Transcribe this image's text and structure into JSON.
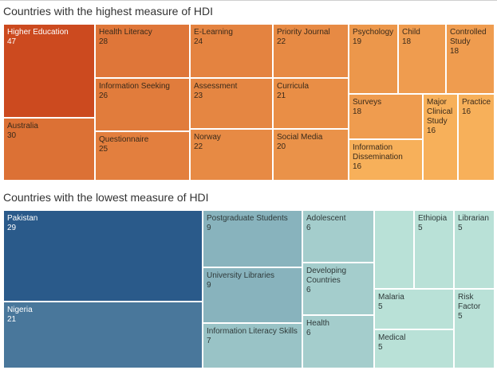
{
  "chart_data": [
    {
      "type": "treemap",
      "title": "Countries with the highest measure of HDI",
      "items": [
        {
          "label": "Higher Education",
          "value": 47
        },
        {
          "label": "Australia",
          "value": 30
        },
        {
          "label": "Health Literacy",
          "value": 28
        },
        {
          "label": "Information Seeking",
          "value": 26
        },
        {
          "label": "Questionnaire",
          "value": 25
        },
        {
          "label": "E-Learning",
          "value": 24
        },
        {
          "label": "Assessment",
          "value": 23
        },
        {
          "label": "Norway",
          "value": 22
        },
        {
          "label": "Priority Journal",
          "value": 22
        },
        {
          "label": "Curricula",
          "value": 21
        },
        {
          "label": "Social Media",
          "value": 20
        },
        {
          "label": "Psychology",
          "value": 19
        },
        {
          "label": "Child",
          "value": 18
        },
        {
          "label": "Controlled Study",
          "value": 18
        },
        {
          "label": "Surveys",
          "value": 18
        },
        {
          "label": "Major Clinical Study",
          "value": 16
        },
        {
          "label": "Practice",
          "value": 16
        },
        {
          "label": "Information Dissemination",
          "value": 16
        }
      ],
      "colors": {
        "low": "#f7b05a",
        "high": "#cc4a1f",
        "text_light": "#ffffff",
        "text_dark": "#3a2a1a"
      }
    },
    {
      "type": "treemap",
      "title": "Countries with the lowest measure of HDI",
      "items": [
        {
          "label": "Pakistan",
          "value": 29
        },
        {
          "label": "Nigeria",
          "value": 21
        },
        {
          "label": "Postgraduate Students",
          "value": 9
        },
        {
          "label": "University Libraries",
          "value": 9
        },
        {
          "label": "Information Literacy Skills",
          "value": 7
        },
        {
          "label": "Adolescent",
          "value": 6
        },
        {
          "label": "Developing Countries",
          "value": 6
        },
        {
          "label": "Health",
          "value": 6
        },
        {
          "label": "",
          "value": null
        },
        {
          "label": "Ethiopia",
          "value": 5
        },
        {
          "label": "Librarian",
          "value": 5
        },
        {
          "label": "Malaria",
          "value": 5
        },
        {
          "label": "Risk Factor",
          "value": 5
        },
        {
          "label": "Medical",
          "value": 5
        }
      ],
      "colors": {
        "low": "#b9e1d7",
        "high": "#2a5a8a",
        "text_light": "#ffffff",
        "text_dark": "#2f3a3a"
      }
    }
  ]
}
